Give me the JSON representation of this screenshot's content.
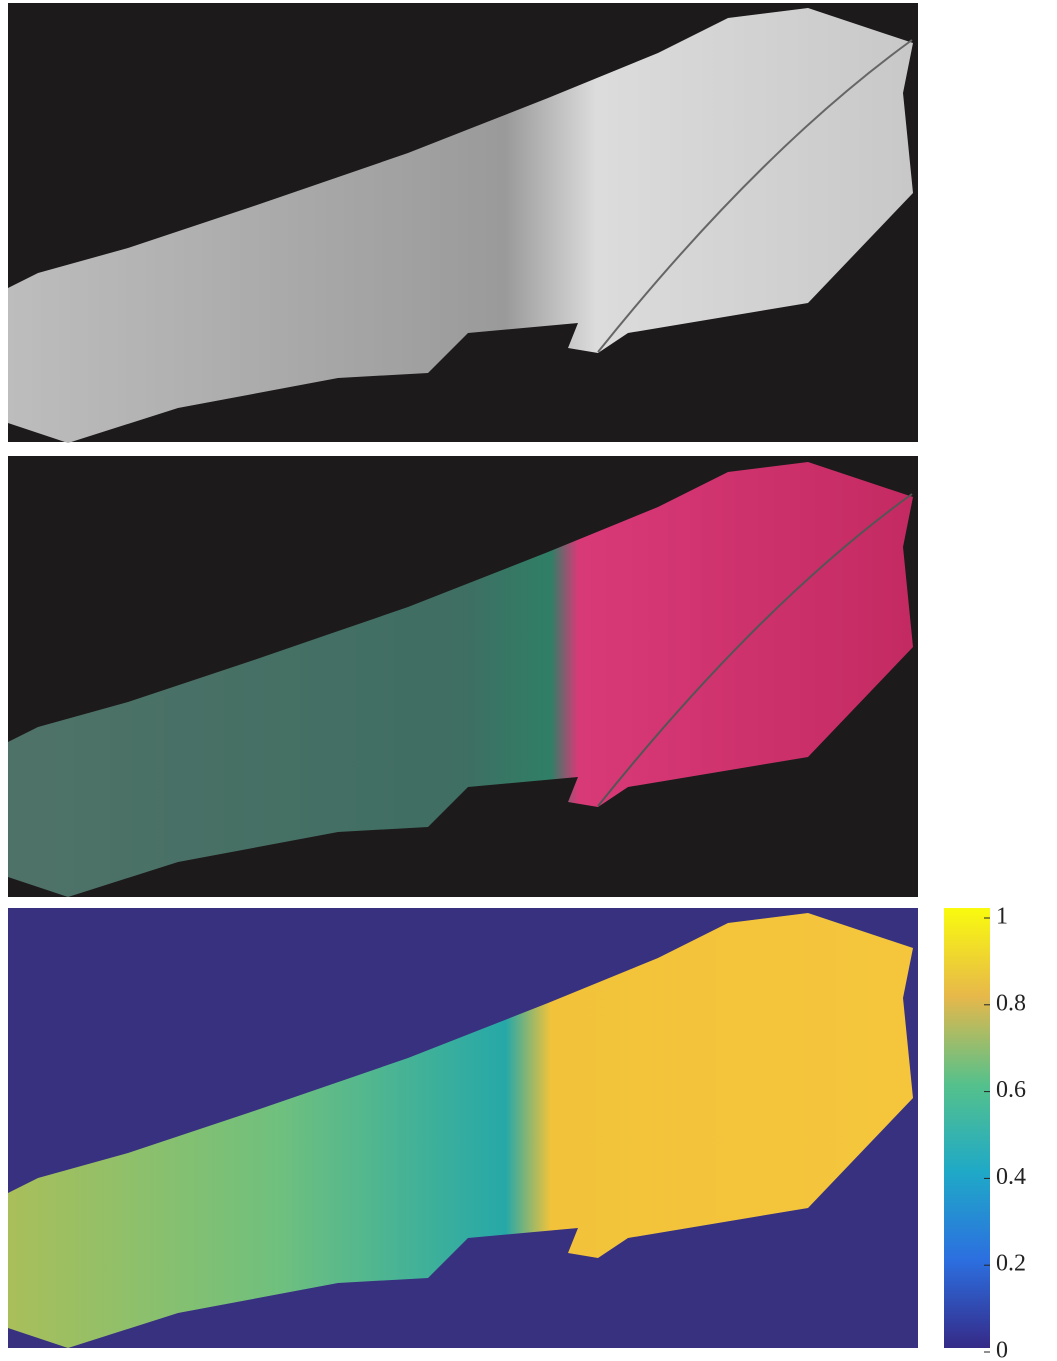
{
  "figure": {
    "colorbar": {
      "lim": [
        0,
        1
      ],
      "ticks": [
        0,
        0.2,
        0.4,
        0.6,
        0.8,
        1
      ]
    }
  }
}
